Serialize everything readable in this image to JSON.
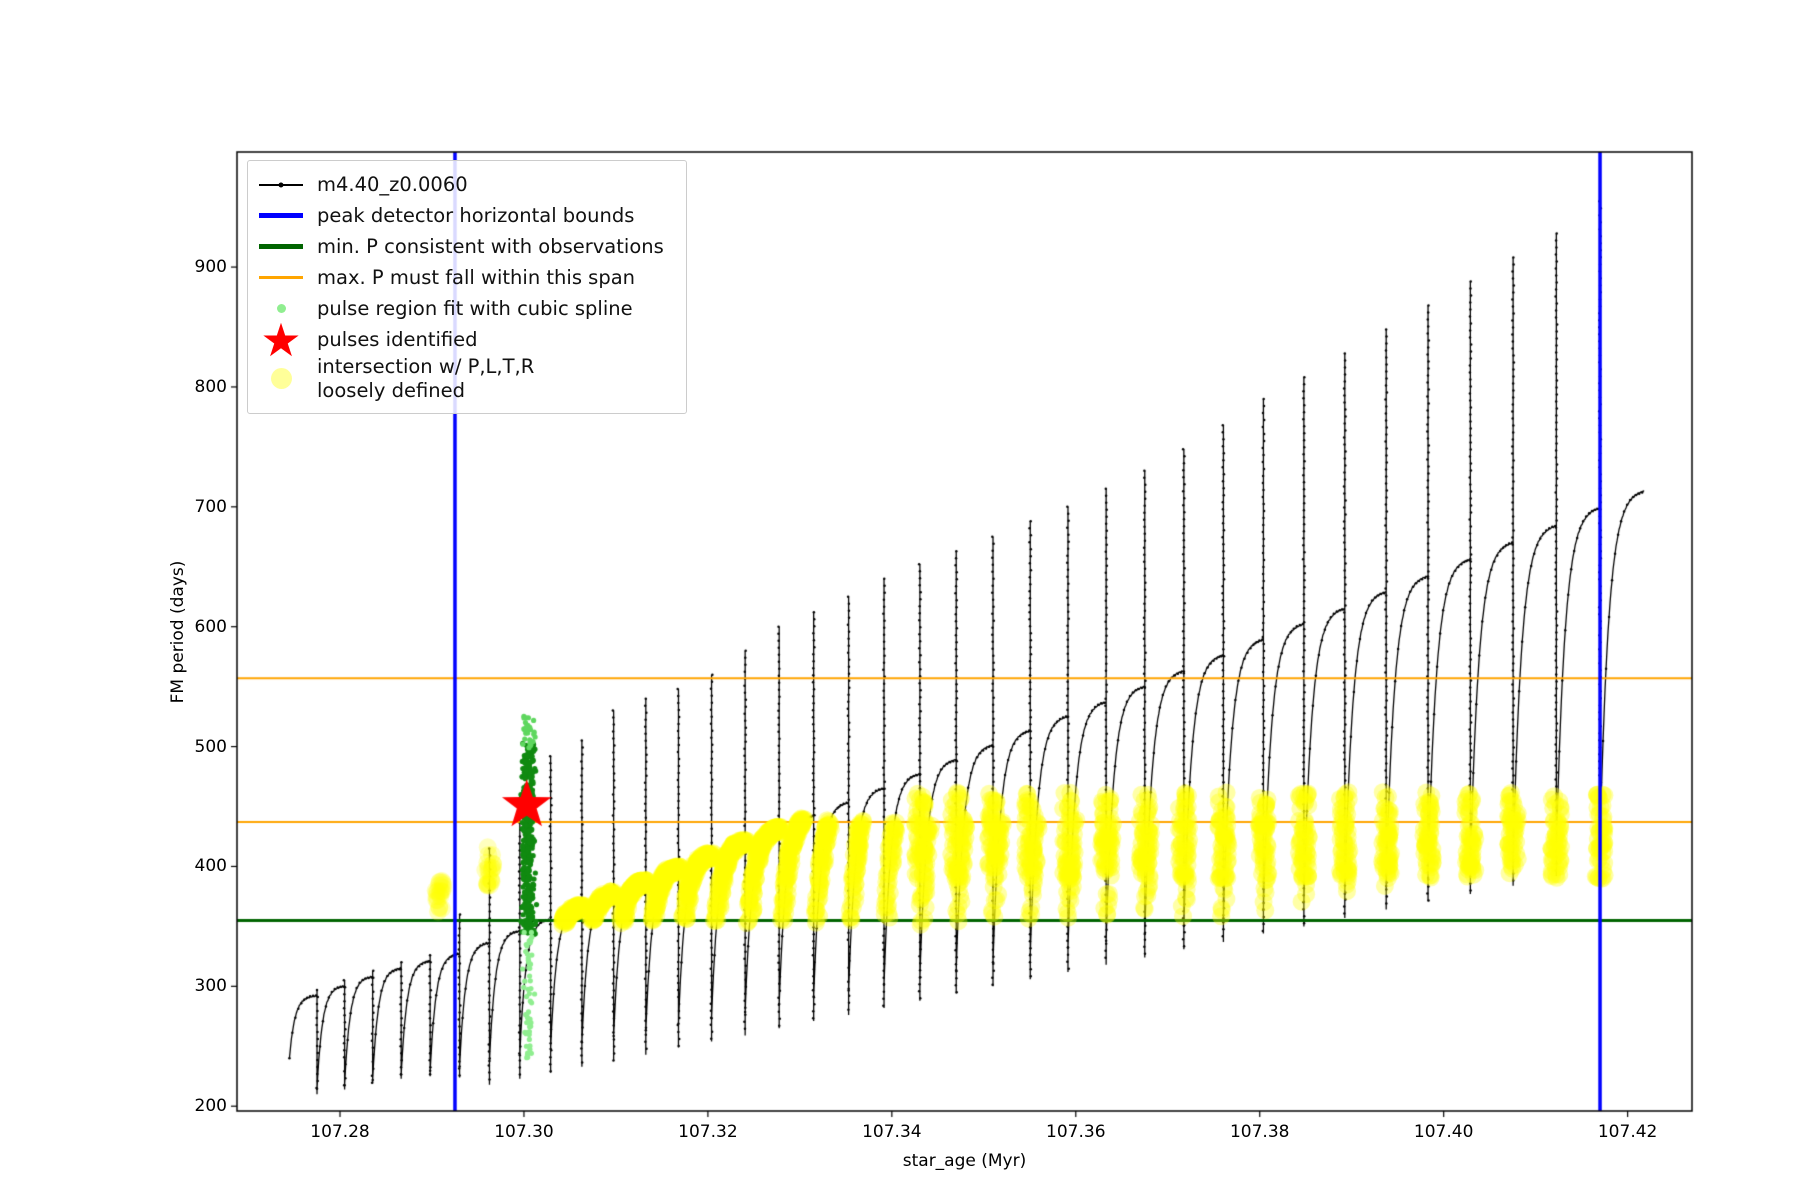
{
  "chart_data": {
    "type": "line",
    "title": "",
    "xlabel": "star_age (Myr)",
    "ylabel": "FM period (days)",
    "xlim": [
      107.2688,
      107.427
    ],
    "ylim": [
      196,
      996
    ],
    "grid": false,
    "legend_position": "upper left",
    "x_ticks": [
      107.28,
      107.3,
      107.32,
      107.34,
      107.36,
      107.38,
      107.4,
      107.42
    ],
    "x_tick_labels": [
      "107.28",
      "107.30",
      "107.32",
      "107.34",
      "107.36",
      "107.38",
      "107.40",
      "107.42"
    ],
    "y_ticks": [
      200,
      300,
      400,
      500,
      600,
      700,
      800,
      900
    ],
    "y_tick_labels": [
      "200",
      "300",
      "400",
      "500",
      "600",
      "700",
      "800",
      "900"
    ],
    "series": {
      "name": "m4.40_z0.0060",
      "color": "#000000",
      "marker": "point",
      "x_start": 107.2745,
      "teeth_format": [
        "x_end",
        "dip_start",
        "plateau_top",
        "spike_top",
        "spike_bottom"
      ],
      "teeth": [
        [
          107.2775,
          240,
          292,
          297,
          210
        ],
        [
          107.2805,
          215,
          300,
          305,
          214
        ],
        [
          107.28355,
          218,
          308,
          313,
          219
        ],
        [
          107.28665,
          222,
          315,
          320,
          223
        ],
        [
          107.2898,
          226,
          321,
          326,
          225
        ],
        [
          107.293,
          229,
          327,
          360,
          224
        ],
        [
          107.29625,
          233,
          336,
          415,
          218
        ],
        [
          107.29955,
          238,
          346,
          460,
          223
        ],
        [
          107.3029,
          243,
          356,
          492,
          228
        ],
        [
          107.3063,
          248,
          366,
          505,
          233
        ],
        [
          107.30975,
          253,
          377,
          530,
          238
        ],
        [
          107.31325,
          258,
          387,
          540,
          243
        ],
        [
          107.3168,
          263,
          398,
          548,
          249
        ],
        [
          107.3204,
          269,
          409,
          560,
          254
        ],
        [
          107.32405,
          274,
          420,
          580,
          259
        ],
        [
          107.32775,
          279,
          431,
          600,
          265
        ],
        [
          107.3315,
          285,
          442,
          612,
          271
        ],
        [
          107.3353,
          291,
          453,
          625,
          276
        ],
        [
          107.33915,
          296,
          465,
          640,
          282
        ],
        [
          107.34305,
          302,
          477,
          652,
          288
        ],
        [
          107.347,
          308,
          489,
          663,
          294
        ],
        [
          107.351,
          314,
          501,
          675,
          300
        ],
        [
          107.35505,
          320,
          513,
          688,
          306
        ],
        [
          107.35915,
          326,
          525,
          700,
          312
        ],
        [
          107.3633,
          332,
          537,
          715,
          318
        ],
        [
          107.3675,
          338,
          550,
          730,
          324
        ],
        [
          107.37175,
          344,
          563,
          748,
          331
        ],
        [
          107.37605,
          351,
          576,
          768,
          337
        ],
        [
          107.3804,
          357,
          589,
          790,
          344
        ],
        [
          107.3848,
          364,
          602,
          808,
          350
        ],
        [
          107.38925,
          370,
          615,
          828,
          357
        ],
        [
          107.39375,
          377,
          629,
          848,
          364
        ],
        [
          107.3983,
          384,
          642,
          868,
          371
        ],
        [
          107.4029,
          391,
          656,
          888,
          377
        ],
        [
          107.40755,
          397,
          670,
          908,
          384
        ],
        [
          107.41225,
          404,
          684,
          928,
          392
        ],
        [
          107.417,
          412,
          699,
          955,
          399
        ],
        [
          107.4218,
          419,
          713,
          null,
          null
        ]
      ]
    },
    "vertical_lines": {
      "label": "peak detector horizontal bounds",
      "color": "#0000ff",
      "linewidth": 3.5,
      "x": [
        107.2925,
        107.417
      ]
    },
    "horizontal_lines": [
      {
        "label": "max. P must fall within this span",
        "color": "#ffa500",
        "linewidth": 2,
        "y": 557
      },
      {
        "label": "max. P must fall within this span",
        "color": "#ffa500",
        "linewidth": 2,
        "y": 437
      },
      {
        "label": "min. P consistent with observations",
        "color": "#006400",
        "linewidth": 3,
        "y": 355
      }
    ],
    "spline_cluster": {
      "label": "pulse region fit with cubic spline",
      "x_center": 107.3005,
      "dense": {
        "color": "#118a11",
        "y_min": 343,
        "y_max": 503,
        "n": 380,
        "x_spread": 0.00055,
        "r": 2.6
      },
      "light": {
        "color": "#90ee90",
        "y_min": 240,
        "y_max": 346,
        "n": 55,
        "x_spread": 0.00045,
        "r": 2.6
      },
      "light_top": {
        "color": "#5fd75f",
        "y_min": 498,
        "y_max": 526,
        "n": 30,
        "x_spread": 0.0004,
        "r": 2.6
      }
    },
    "pulse_star": {
      "label": "pulses identified",
      "color": "#ff0000",
      "x": 107.3003,
      "y": 451,
      "outer_radius_px": 26
    },
    "yellow_scatter": {
      "label": "intersection w/ P,L,T,R loosely defined",
      "color": "#ffff00",
      "alpha": 0.35,
      "extra_alpha": 0.25,
      "marker_px": 9,
      "curve_band": {
        "from_x": 107.306,
        "y_min": 353,
        "y_max": 438
      },
      "spike_band": {
        "from_x": 107.343,
        "y_min": 390,
        "y_max": 462
      },
      "extra_clusters": [
        {
          "x": 107.2908,
          "y_min": 362,
          "y_max": 388
        },
        {
          "x": 107.2962,
          "y_min": 384,
          "y_max": 418
        }
      ]
    }
  },
  "legend": {
    "entries": [
      {
        "label": "m4.40_z0.0060",
        "type": "line-marker",
        "color": "#000000",
        "lw": 2,
        "icon": "black-line-with-dot-icon"
      },
      {
        "label": "peak detector horizontal bounds",
        "type": "line",
        "color": "#0000ff",
        "lw": 5,
        "icon": "blue-line-icon"
      },
      {
        "label": "min. P consistent with observations",
        "type": "line",
        "color": "#006400",
        "lw": 5,
        "icon": "green-line-icon"
      },
      {
        "label": "max. P must fall within this span",
        "type": "line",
        "color": "#ffa500",
        "lw": 3,
        "icon": "orange-line-icon"
      },
      {
        "label": "pulse region fit with cubic spline",
        "type": "dot",
        "color": "#90ee90",
        "size": 9,
        "icon": "lightgreen-dot-icon"
      },
      {
        "label": "pulses identified",
        "type": "star",
        "color": "#ff0000",
        "icon": "red-star-icon"
      },
      {
        "label": "intersection w/ P,L,T,R\nloosely defined",
        "type": "dot",
        "color": "rgba(255,255,0,0.4)",
        "size": 21,
        "icon": "yellow-dot-icon"
      }
    ]
  }
}
